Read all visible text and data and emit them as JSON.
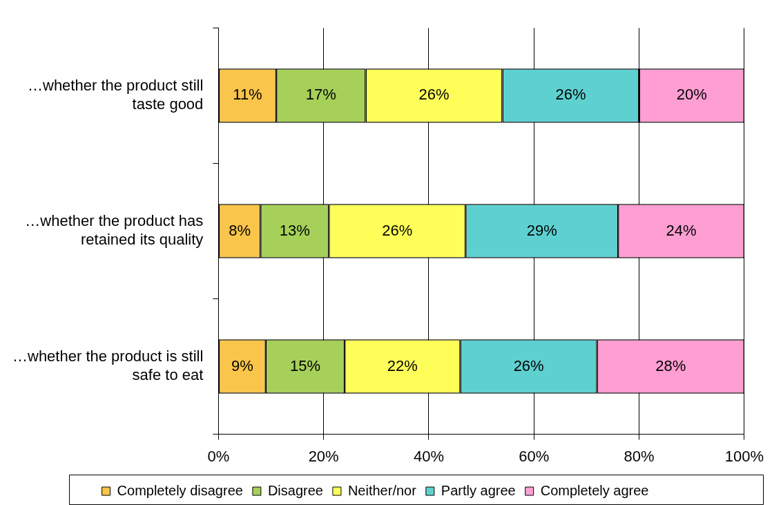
{
  "chart_data": {
    "type": "bar",
    "orientation": "horizontal",
    "stacked": true,
    "categories": [
      "…whether the product still taste good",
      "…whether the product has retained its quality",
      "…whether the product is still safe to eat"
    ],
    "series": [
      {
        "name": "Completely disagree",
        "color": "#f9c54a",
        "values": [
          11,
          8,
          9
        ],
        "value_labels": [
          "11%",
          "8%",
          "9%"
        ]
      },
      {
        "name": "Disagree",
        "color": "#a6d05a",
        "values": [
          17,
          13,
          15
        ],
        "value_labels": [
          "17%",
          "13%",
          "15%"
        ]
      },
      {
        "name": "Neither/nor",
        "color": "#ffff5a",
        "values": [
          26,
          26,
          22
        ],
        "value_labels": [
          "26%",
          "26%",
          "22%"
        ]
      },
      {
        "name": "Partly agree",
        "color": "#5ed0d0",
        "values": [
          26,
          29,
          26
        ],
        "value_labels": [
          "26%",
          "29%",
          "26%"
        ]
      },
      {
        "name": "Completely agree",
        "color": "#ff9ed2",
        "values": [
          20,
          24,
          28
        ],
        "value_labels": [
          "20%",
          "24%",
          "28%"
        ]
      }
    ],
    "xlim": [
      0,
      100
    ],
    "xticks": [
      {
        "value": 0,
        "label": "0%"
      },
      {
        "value": 20,
        "label": "20%"
      },
      {
        "value": 40,
        "label": "40%"
      },
      {
        "value": 60,
        "label": "60%"
      },
      {
        "value": 80,
        "label": "80%"
      },
      {
        "value": 100,
        "label": "100%"
      }
    ],
    "grid": "x",
    "legend": "bottom"
  }
}
